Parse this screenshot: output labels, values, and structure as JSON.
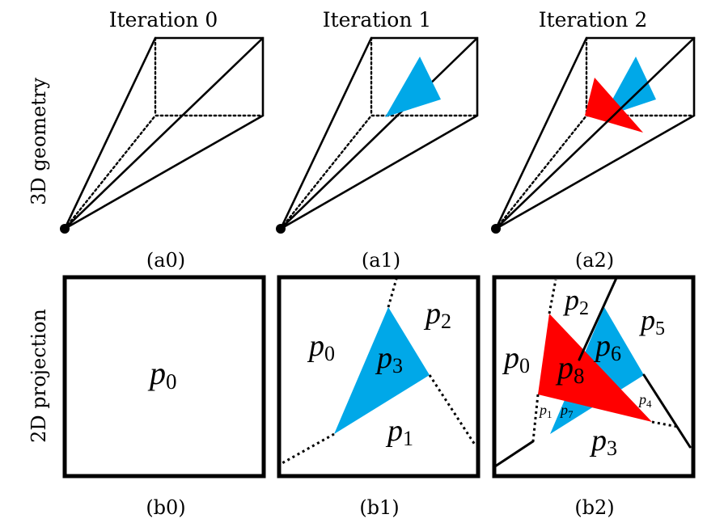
{
  "headers": [
    "Iteration 0",
    "Iteration 1",
    "Iteration 2"
  ],
  "row_labels": {
    "top": "3D geometry",
    "bottom": "2D projection"
  },
  "captions_top": [
    "(a0)",
    "(a1)",
    "(a2)"
  ],
  "captions_bottom": [
    "(b0)",
    "(b1)",
    "(b2)"
  ],
  "colors": {
    "blue": "#00A8E8",
    "red": "#FF0000",
    "line": "#000000"
  },
  "b0": {
    "p0": {
      "p": "p",
      "s": "0"
    }
  },
  "b1": {
    "p0": {
      "p": "p",
      "s": "0"
    },
    "p1": {
      "p": "p",
      "s": "1"
    },
    "p2": {
      "p": "p",
      "s": "2"
    },
    "p3": {
      "p": "p",
      "s": "3"
    }
  },
  "b2": {
    "p0": {
      "p": "p",
      "s": "0"
    },
    "p1": {
      "p": "p",
      "s": "1"
    },
    "p2": {
      "p": "p",
      "s": "2"
    },
    "p3": {
      "p": "p",
      "s": "3"
    },
    "p4": {
      "p": "p",
      "s": "4"
    },
    "p5": {
      "p": "p",
      "s": "5"
    },
    "p6": {
      "p": "p",
      "s": "6"
    },
    "p7": {
      "p": "p",
      "s": "7"
    },
    "p8": {
      "p": "p",
      "s": "8"
    }
  }
}
